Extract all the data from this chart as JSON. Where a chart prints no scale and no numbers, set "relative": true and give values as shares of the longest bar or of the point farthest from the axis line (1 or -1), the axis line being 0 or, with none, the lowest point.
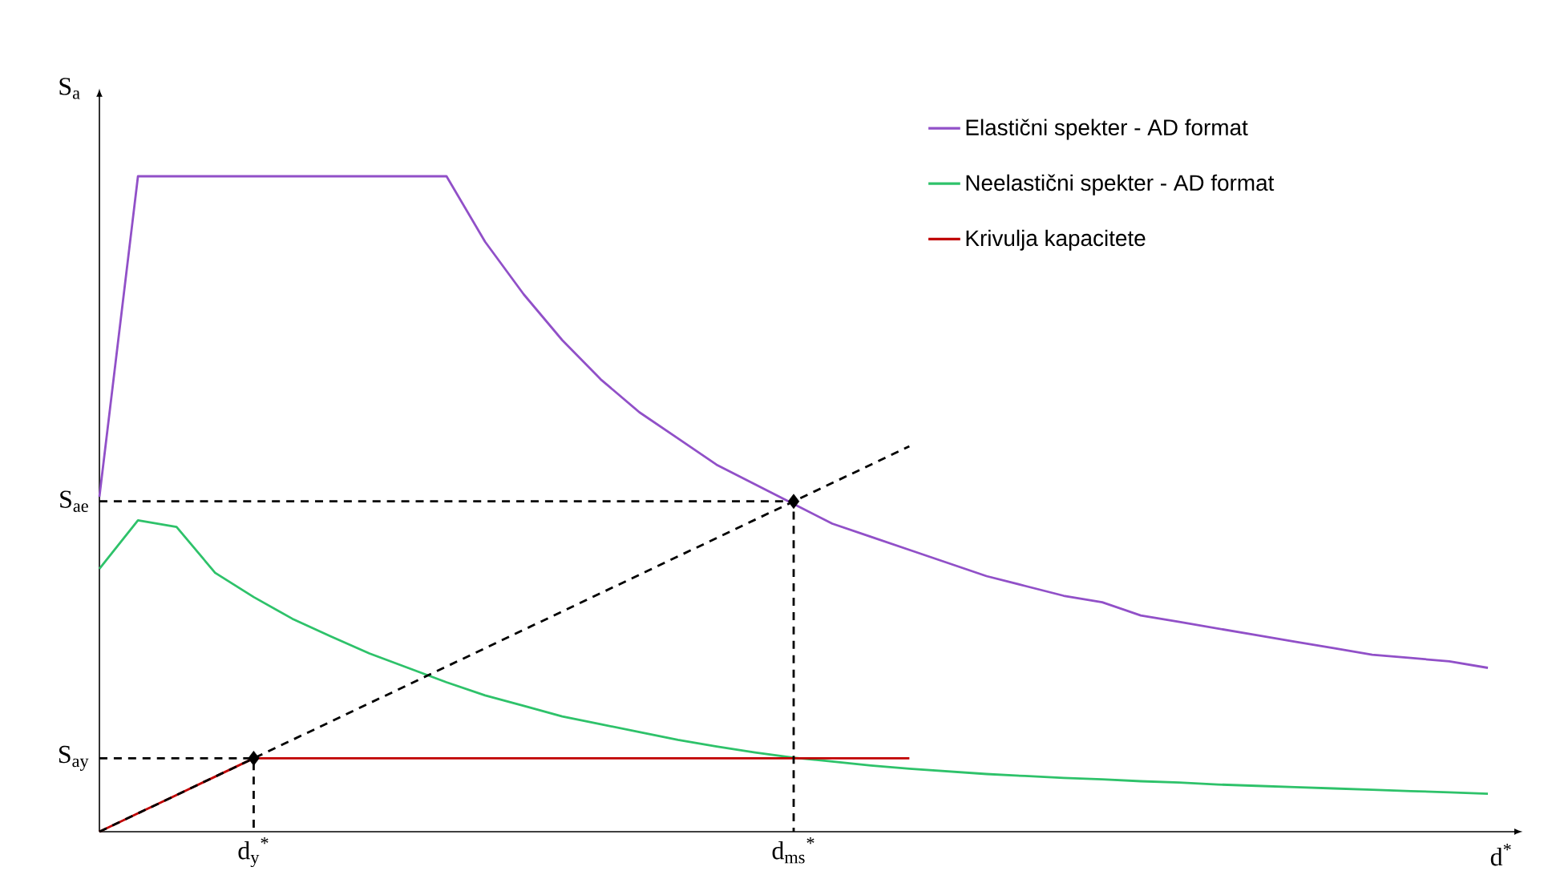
{
  "chart_data": {
    "type": "line",
    "relative": true,
    "xlabel": "d$^{*}$",
    "ylabel": "S$_{a}$",
    "legend": "top right",
    "annotations": [
      "S$_{ay}$",
      "S$_{ae}$"
    ],
    "categories": [
      null,
      null,
      null,
      null,
      "d$_{y}$$^{*}$",
      null,
      null,
      null,
      null,
      null,
      null,
      null,
      null,
      null,
      null,
      null,
      null,
      null,
      "d$_{ms}$$^{*}$",
      null,
      null,
      null,
      null,
      null,
      null,
      null,
      null,
      null,
      null,
      null,
      null,
      null,
      null,
      null,
      null,
      null,
      null
    ],
    "series": [
      {
        "name": "Elastični spekter - AD format",
        "color": "#9150c8",
        "values": [
          0.511,
          1,
          1,
          1,
          1,
          1,
          1,
          1,
          1,
          1,
          0.9,
          0.82,
          0.75,
          0.69,
          0.64,
          0.6,
          0.56,
          0.53,
          0.5,
          0.47,
          0.45,
          0.43,
          0.41,
          0.39,
          0.375,
          0.36,
          0.35,
          0.33,
          0.32,
          0.31,
          0.3,
          0.29,
          0.28,
          0.27,
          0.265,
          0.26,
          0.25
        ]
      },
      {
        "name": "Neelastični spekter - AD format",
        "color": "#2ec26a",
        "values": [
          0.401,
          0.475,
          0.465,
          0.395,
          0.358,
          0.325,
          0.298,
          0.272,
          0.25,
          0.228,
          0.208,
          0.192,
          0.176,
          0.164,
          0.152,
          0.14,
          0.13,
          0.121,
          0.113,
          0.107,
          0.101,
          0.096,
          0.092,
          0.088,
          0.085,
          0.082,
          0.08,
          0.077,
          0.075,
          0.072,
          0.07,
          0.068,
          0.066,
          0.064,
          0.062,
          0.06,
          0.058
        ]
      },
      {
        "name": "Krivulja kapacitete",
        "color": "#c00000",
        "values": [
          0,
          0.028,
          0.056,
          0.084,
          0.112,
          0.112,
          0.112,
          0.112,
          0.112,
          0.112,
          0.112,
          0.112,
          0.112,
          0.112,
          0.112,
          0.112,
          0.112,
          0.112,
          0.112,
          0.112,
          0.112,
          0.112,
          null,
          null,
          null,
          null,
          null,
          null,
          null,
          null,
          null,
          null,
          null,
          null,
          null,
          null,
          null
        ]
      },
      {
        "color": "#000000",
        "line_style": "dashed",
        "values": [
          0,
          0.028,
          0.056,
          0.084,
          0.112,
          0.14,
          0.168,
          0.196,
          0.224,
          0.252,
          0.28,
          0.308,
          0.336,
          0.364,
          0.392,
          0.42,
          0.448,
          0.476,
          0.504,
          0.532,
          0.56,
          0.588,
          null,
          null,
          null,
          null,
          null,
          null,
          null,
          null,
          null,
          null,
          null,
          null,
          null,
          null,
          null
        ]
      },
      {
        "type": "scatter",
        "marker": "diamond",
        "color": "#000000",
        "values": [
          null,
          null,
          null,
          null,
          0.112,
          null,
          null,
          null,
          null,
          null,
          null,
          null,
          null,
          null,
          null,
          null,
          null,
          null,
          0.504,
          null,
          null,
          null,
          null,
          null,
          null,
          null,
          null,
          null,
          null,
          null,
          null,
          null,
          null,
          null,
          null,
          null,
          null
        ]
      }
    ]
  }
}
